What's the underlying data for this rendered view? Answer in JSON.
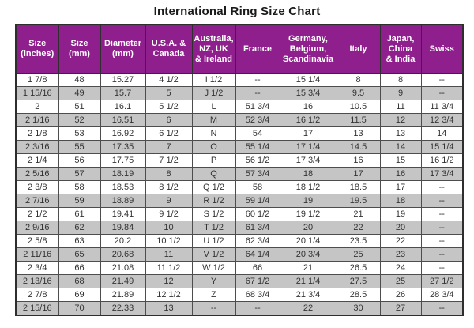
{
  "chart_data": {
    "type": "table",
    "title": "International Ring Size Chart",
    "columns": [
      "Size\n(inches)",
      "Size\n(mm)",
      "Diameter\n(mm)",
      "U.S.A. &\nCanada",
      "Australia,\nNZ, UK\n& Ireland",
      "France",
      "Germany,\nBelgium,\nScandinavia",
      "Italy",
      "Japan,\nChina\n& India",
      "Swiss"
    ],
    "rows": [
      [
        "1 7/8",
        "48",
        "15.27",
        "4 1/2",
        "I 1/2",
        "--",
        "15 1/4",
        "8",
        "8",
        "--"
      ],
      [
        "1 15/16",
        "49",
        "15.7",
        "5",
        "J 1/2",
        "--",
        "15 3/4",
        "9.5",
        "9",
        "--"
      ],
      [
        "2",
        "51",
        "16.1",
        "5 1/2",
        "L",
        "51 3/4",
        "16",
        "10.5",
        "11",
        "11 3/4"
      ],
      [
        "2 1/16",
        "52",
        "16.51",
        "6",
        "M",
        "52 3/4",
        "16 1/2",
        "11.5",
        "12",
        "12 3/4"
      ],
      [
        "2 1/8",
        "53",
        "16.92",
        "6 1/2",
        "N",
        "54",
        "17",
        "13",
        "13",
        "14"
      ],
      [
        "2 3/16",
        "55",
        "17.35",
        "7",
        "O",
        "55 1/4",
        "17 1/4",
        "14.5",
        "14",
        "15 1/4"
      ],
      [
        "2 1/4",
        "56",
        "17.75",
        "7 1/2",
        "P",
        "56 1/2",
        "17 3/4",
        "16",
        "15",
        "16 1/2"
      ],
      [
        "2 5/16",
        "57",
        "18.19",
        "8",
        "Q",
        "57 3/4",
        "18",
        "17",
        "16",
        "17 3/4"
      ],
      [
        "2 3/8",
        "58",
        "18.53",
        "8 1/2",
        "Q 1/2",
        "58",
        "18 1/2",
        "18.5",
        "17",
        "--"
      ],
      [
        "2 7/16",
        "59",
        "18.89",
        "9",
        "R 1/2",
        "59 1/4",
        "19",
        "19.5",
        "18",
        "--"
      ],
      [
        "2 1/2",
        "61",
        "19.41",
        "9 1/2",
        "S 1/2",
        "60 1/2",
        "19 1/2",
        "21",
        "19",
        "--"
      ],
      [
        "2 9/16",
        "62",
        "19.84",
        "10",
        "T 1/2",
        "61 3/4",
        "20",
        "22",
        "20",
        "--"
      ],
      [
        "2 5/8",
        "63",
        "20.2",
        "10 1/2",
        "U 1/2",
        "62 3/4",
        "20 1/4",
        "23.5",
        "22",
        "--"
      ],
      [
        "2 11/16",
        "65",
        "20.68",
        "11",
        "V 1/2",
        "64 1/4",
        "20 3/4",
        "25",
        "23",
        "--"
      ],
      [
        "2 3/4",
        "66",
        "21.08",
        "11 1/2",
        "W 1/2",
        "66",
        "21",
        "26.5",
        "24",
        "--"
      ],
      [
        "2 13/16",
        "68",
        "21.49",
        "12",
        "Y",
        "67 1/2",
        "21 1/4",
        "27.5",
        "25",
        "27 1/2"
      ],
      [
        "2 7/8",
        "69",
        "21.89",
        "12 1/2",
        "Z",
        "68 3/4",
        "21 3/4",
        "28.5",
        "26",
        "28 3/4"
      ],
      [
        "2 15/16",
        "70",
        "22.33",
        "13",
        "--",
        "--",
        "22",
        "30",
        "27",
        "--"
      ]
    ],
    "layout": {
      "header_position": "top",
      "grid": true,
      "row_striping": "alternate"
    }
  },
  "colors": {
    "header_bg": "#8E1F8C",
    "header_text": "#FFFFFF",
    "row_alt": "#C5C5C5",
    "row_white": "#FFFFFF",
    "body_text": "#333333",
    "border": "#4D4D4D"
  }
}
